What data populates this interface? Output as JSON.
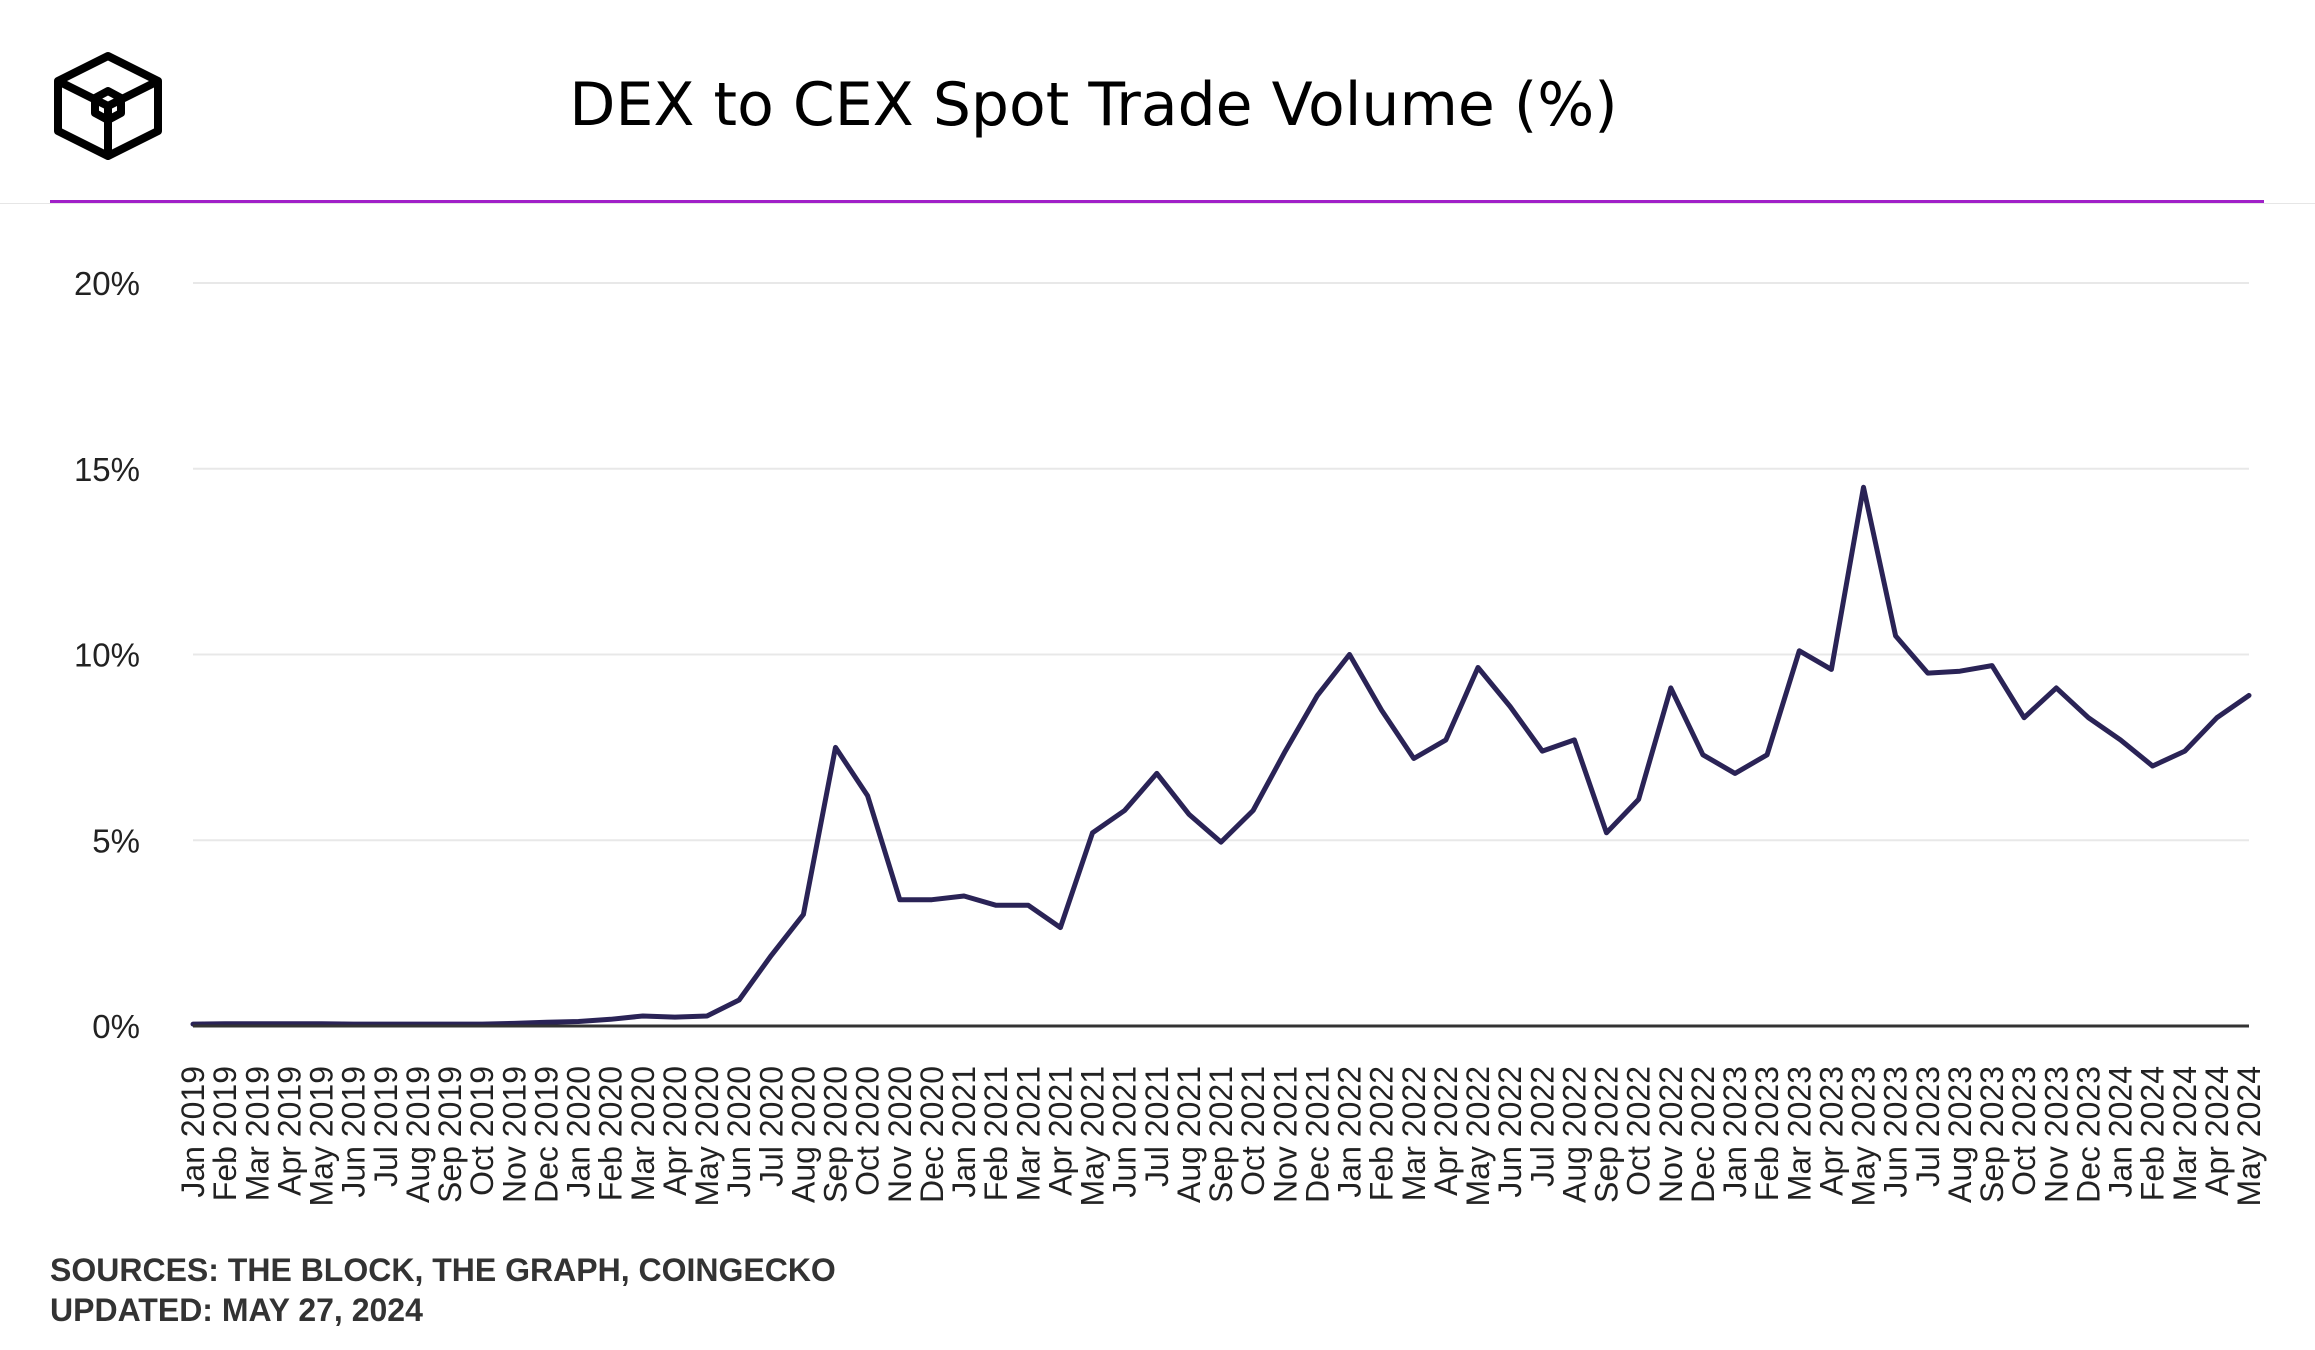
{
  "title": "DEX to CEX Spot Trade Volume (%)",
  "logo": {
    "icon": "the-block-cube-logo"
  },
  "footer": {
    "sources": "SOURCES: THE BLOCK, THE GRAPH, COINGECKO",
    "updated": "UPDATED: MAY 27, 2024"
  },
  "colors": {
    "line": "#2a2356",
    "accent": "#a020c8",
    "grid": "#e8e8e8",
    "axis": "#333333"
  },
  "chart_data": {
    "type": "line",
    "title": "DEX to CEX Spot Trade Volume (%)",
    "xlabel": "",
    "ylabel": "",
    "ylim": [
      0,
      20
    ],
    "yticks": [
      "0%",
      "5%",
      "10%",
      "15%",
      "20%"
    ],
    "grid": true,
    "legend": "none",
    "categories": [
      "Jan 2019",
      "Feb 2019",
      "Mar 2019",
      "Apr 2019",
      "May 2019",
      "Jun 2019",
      "Jul 2019",
      "Aug 2019",
      "Sep 2019",
      "Oct 2019",
      "Nov 2019",
      "Dec 2019",
      "Jan 2020",
      "Feb 2020",
      "Mar 2020",
      "Apr 2020",
      "May 2020",
      "Jun 2020",
      "Jul 2020",
      "Aug 2020",
      "Sep 2020",
      "Oct 2020",
      "Nov 2020",
      "Dec 2020",
      "Jan 2021",
      "Feb 2021",
      "Mar 2021",
      "Apr 2021",
      "May 2021",
      "Jun 2021",
      "Jul 2021",
      "Aug 2021",
      "Sep 2021",
      "Oct 2021",
      "Nov 2021",
      "Dec 2021",
      "Jan 2022",
      "Feb 2022",
      "Mar 2022",
      "Apr 2022",
      "May 2022",
      "Jun 2022",
      "Jul 2022",
      "Aug 2022",
      "Sep 2022",
      "Oct 2022",
      "Nov 2022",
      "Dec 2022",
      "Jan 2023",
      "Feb 2023",
      "Mar 2023",
      "Apr 2023",
      "May 2023",
      "Jun 2023",
      "Jul 2023",
      "Aug 2023",
      "Sep 2023",
      "Oct 2023",
      "Nov 2023",
      "Dec 2023",
      "Jan 2024",
      "Feb 2024",
      "Mar 2024",
      "Apr 2024",
      "May 2024"
    ],
    "series": [
      {
        "values": [
          0.05,
          0.06,
          0.06,
          0.06,
          0.06,
          0.05,
          0.05,
          0.05,
          0.05,
          0.05,
          0.07,
          0.1,
          0.12,
          0.18,
          0.27,
          0.24,
          0.27,
          0.7,
          1.9,
          3.0,
          7.5,
          6.2,
          3.4,
          3.4,
          3.5,
          3.25,
          3.25,
          2.65,
          5.2,
          5.8,
          6.8,
          5.7,
          4.95,
          5.8,
          7.4,
          8.9,
          10.0,
          8.5,
          7.2,
          7.7,
          9.65,
          8.6,
          7.4,
          7.7,
          5.2,
          6.1,
          9.1,
          7.3,
          6.8,
          7.3,
          10.1,
          9.6,
          14.5,
          10.5,
          9.5,
          9.55,
          9.7,
          8.3,
          9.1,
          8.3,
          7.7,
          7.0,
          7.4,
          8.3,
          8.9
        ]
      }
    ]
  }
}
